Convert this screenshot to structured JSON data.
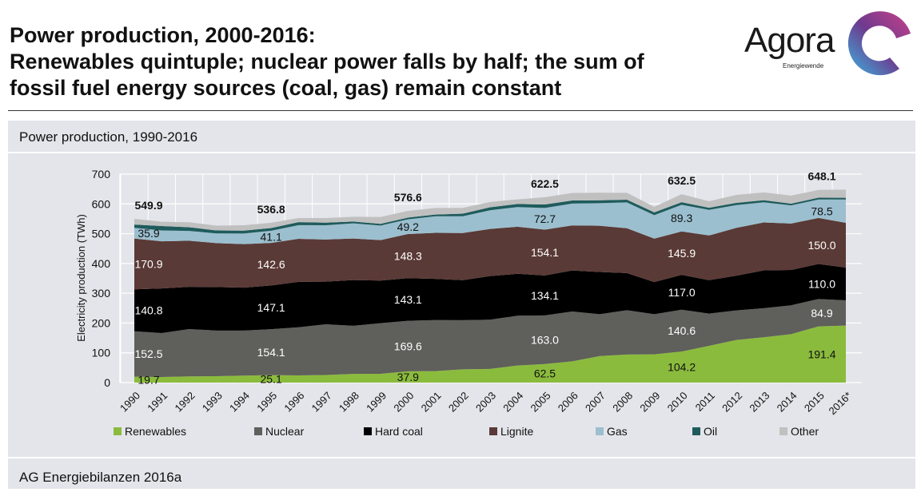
{
  "header": {
    "title_lines": [
      "Power production, 2000-2016:",
      "Renewables quintuple; nuclear power falls by half; the sum of",
      "fossil fuel energy sources (coal, gas) remain constant"
    ],
    "logo_text": "Agora",
    "logo_sub": "Energiewende"
  },
  "panel": {
    "subtitle": "Power production, 1990-2016",
    "source": "AG Energiebilanzen 2016a"
  },
  "chart_data": {
    "type": "area",
    "stacked": true,
    "title": "Power production, 1990-2016",
    "xlabel": "",
    "ylabel": "Electricity production (TWh)",
    "ylim": [
      0,
      700
    ],
    "yticks": [
      0,
      100,
      200,
      300,
      400,
      500,
      600,
      700
    ],
    "grid": true,
    "legend_placement": "bottom",
    "categories": [
      "1990",
      "1991",
      "1992",
      "1993",
      "1994",
      "1995",
      "1996",
      "1997",
      "1998",
      "1999",
      "2000",
      "2001",
      "2002",
      "2003",
      "2004",
      "2005",
      "2006",
      "2007",
      "2008",
      "2009",
      "2010",
      "2011",
      "2012",
      "2013",
      "2014",
      "2015",
      "2016*"
    ],
    "series": [
      {
        "name": "Renewables",
        "color": "#8bbb3d",
        "label_color": "#111",
        "values": [
          19.7,
          18.9,
          20.9,
          21.3,
          23.5,
          25.1,
          24.1,
          25.4,
          29.2,
          29.4,
          37.9,
          38.5,
          44.7,
          46.0,
          57.4,
          62.5,
          71.4,
          89.0,
          94.3,
          94.9,
          104.2,
          123.5,
          143.0,
          152.3,
          162.5,
          188.8,
          191.4
        ]
      },
      {
        "name": "Nuclear",
        "color": "#5f5f5b",
        "label_color": "#fff",
        "values": [
          152.5,
          147.4,
          158.8,
          153.5,
          151.2,
          154.1,
          161.6,
          170.3,
          161.6,
          170.0,
          169.6,
          171.3,
          164.8,
          165.1,
          167.1,
          163.0,
          167.3,
          140.5,
          148.8,
          134.9,
          140.6,
          108.0,
          99.5,
          97.3,
          97.1,
          91.8,
          84.9
        ]
      },
      {
        "name": "Hard coal",
        "color": "#000000",
        "label_color": "#fff",
        "values": [
          140.8,
          149.8,
          141.9,
          146.1,
          144.2,
          147.1,
          152.7,
          143.1,
          153.4,
          143.1,
          143.1,
          138.4,
          134.6,
          146.5,
          140.8,
          134.1,
          137.9,
          142.0,
          124.6,
          107.9,
          117.0,
          112.4,
          116.4,
          127.3,
          118.6,
          117.7,
          110.0
        ]
      },
      {
        "name": "Lignite",
        "color": "#5a3a36",
        "label_color": "#fff",
        "values": [
          170.9,
          158.3,
          154.7,
          147.5,
          146.1,
          142.6,
          144.3,
          141.7,
          139.4,
          136.0,
          148.3,
          154.8,
          158.0,
          158.2,
          158.0,
          154.1,
          151.1,
          155.1,
          150.6,
          145.6,
          145.9,
          150.1,
          160.7,
          160.9,
          155.8,
          154.5,
          150.0
        ]
      },
      {
        "name": "Gas",
        "color": "#9bbfcf",
        "label_color": "#111",
        "values": [
          35.9,
          36.6,
          32.9,
          32.6,
          35.4,
          41.1,
          46.0,
          48.0,
          51.0,
          49.0,
          49.2,
          55.5,
          56.3,
          62.9,
          66.1,
          72.7,
          73.4,
          75.9,
          86.7,
          78.8,
          89.3,
          86.1,
          76.4,
          67.5,
          61.1,
          62.0,
          78.5
        ]
      },
      {
        "name": "Oil",
        "color": "#1f5b5c",
        "label_color": "#111",
        "values": [
          10.8,
          14.8,
          12.5,
          9.8,
          9.8,
          9.1,
          10.0,
          8.5,
          6.2,
          5.7,
          5.9,
          5.8,
          8.7,
          9.9,
          10.3,
          11.6,
          10.5,
          9.6,
          9.2,
          9.6,
          8.7,
          6.8,
          7.6,
          7.2,
          5.7,
          6.2,
          5.8
        ]
      },
      {
        "name": "Other",
        "color": "#c0c0c0",
        "label_color": "#111",
        "values": [
          19.3,
          14.4,
          16.8,
          16.2,
          18.1,
          17.7,
          13.8,
          15.5,
          15.9,
          23.1,
          22.6,
          22.1,
          19.6,
          18.0,
          15.6,
          24.5,
          25.2,
          25.5,
          23.0,
          18.7,
          26.8,
          22.0,
          26.6,
          26.1,
          27.0,
          25.9,
          27.5
        ]
      }
    ],
    "labeled_years": [
      "1990",
      "1995",
      "2000",
      "2005",
      "2010",
      "2016*"
    ],
    "labeled_series": [
      "Renewables",
      "Nuclear",
      "Hard coal",
      "Lignite",
      "Gas"
    ],
    "totals": {
      "1990": "549.9",
      "1995": "536.8",
      "2000": "576.6",
      "2005": "622.5",
      "2010": "632.5",
      "2016*": "648.1"
    }
  }
}
